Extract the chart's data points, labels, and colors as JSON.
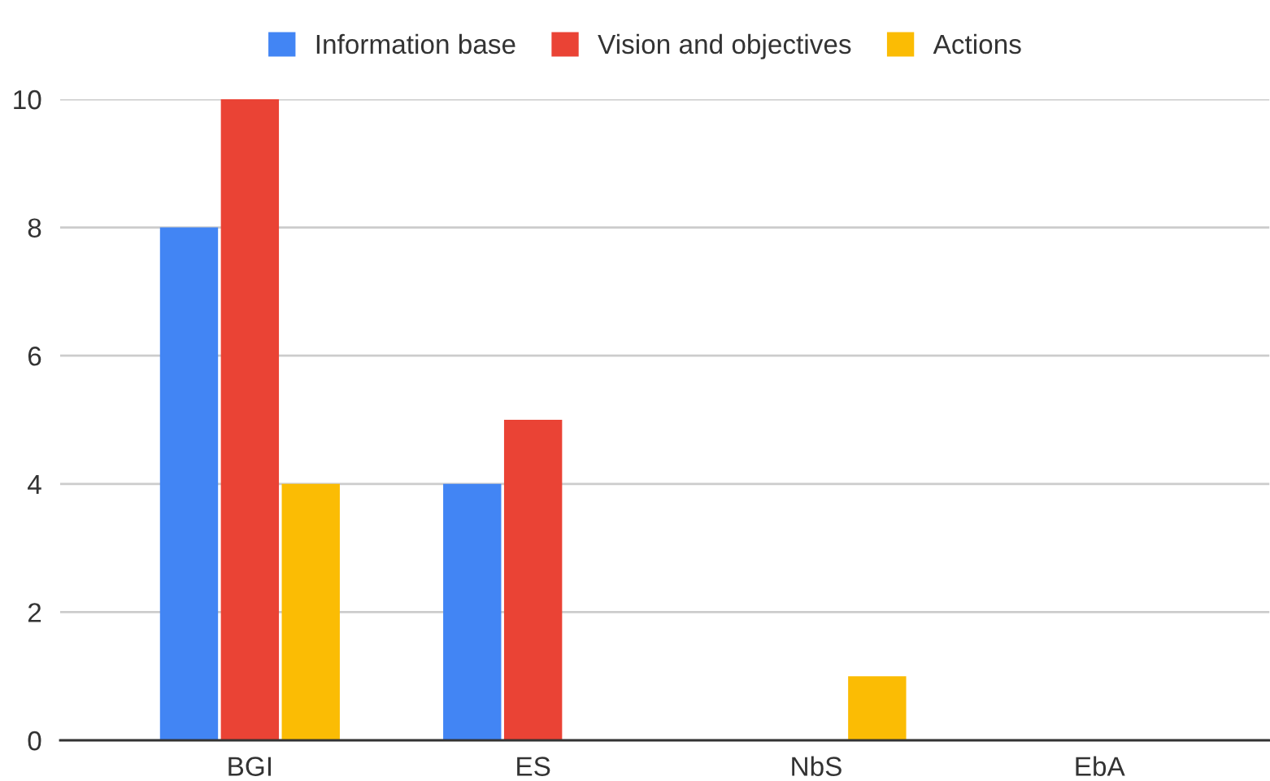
{
  "chart_data": {
    "type": "bar",
    "categories": [
      "BGI",
      "ES",
      "NbS",
      "EbA"
    ],
    "series": [
      {
        "name": "Information base",
        "color": "#4285f4",
        "values": [
          8,
          4,
          null,
          null
        ]
      },
      {
        "name": "Vision and objectives",
        "color": "#ea4335",
        "values": [
          10,
          5,
          null,
          null
        ]
      },
      {
        "name": "Actions",
        "color": "#fbbc04",
        "values": [
          4,
          null,
          1,
          null
        ]
      }
    ],
    "ylim": [
      0,
      10
    ],
    "yticks": [
      0,
      2,
      4,
      6,
      8,
      10
    ],
    "grid": "y",
    "legend": "top"
  }
}
